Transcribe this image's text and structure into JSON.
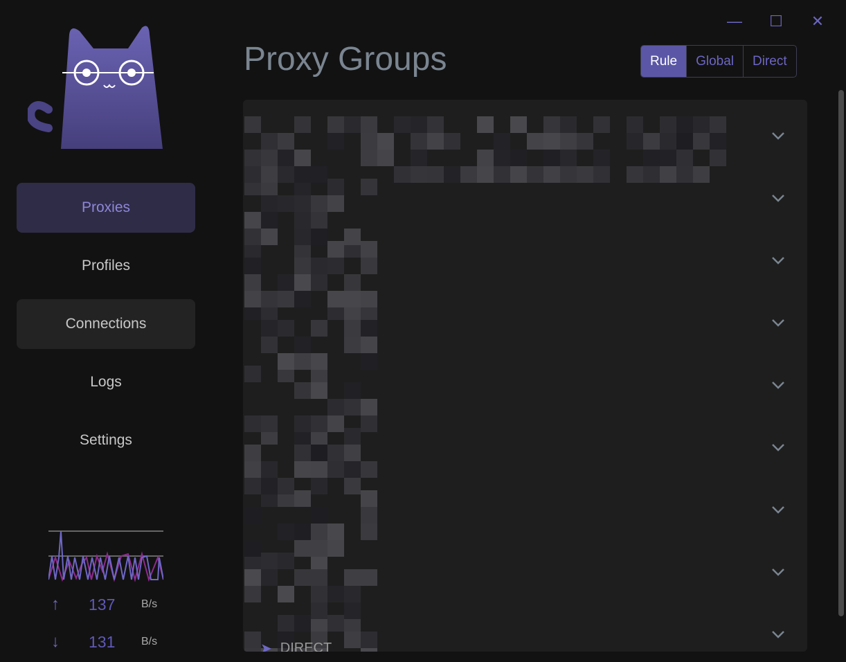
{
  "window": {
    "minimize_icon": "minimize-icon",
    "maximize_icon": "maximize-icon",
    "close_icon": "close-icon"
  },
  "sidebar": {
    "items": [
      {
        "label": "Proxies",
        "state": "active"
      },
      {
        "label": "Profiles"
      },
      {
        "label": "Connections",
        "state": "hover"
      },
      {
        "label": "Logs"
      },
      {
        "label": "Settings"
      }
    ]
  },
  "traffic": {
    "upload": {
      "value": "137",
      "unit": "B/s"
    },
    "download": {
      "value": "131",
      "unit": "B/s"
    },
    "colors": {
      "upload": "#6e67c6",
      "download": "#8e2c8e"
    }
  },
  "header": {
    "title": "Proxy Groups",
    "modes": [
      "Rule",
      "Global",
      "Direct"
    ],
    "selected_mode": "Rule"
  },
  "groups": {
    "count": 9,
    "last_selected": "DIRECT"
  },
  "colors": {
    "accent": "#5b57a6",
    "background": "#121212",
    "panel": "#1e1e1e"
  }
}
